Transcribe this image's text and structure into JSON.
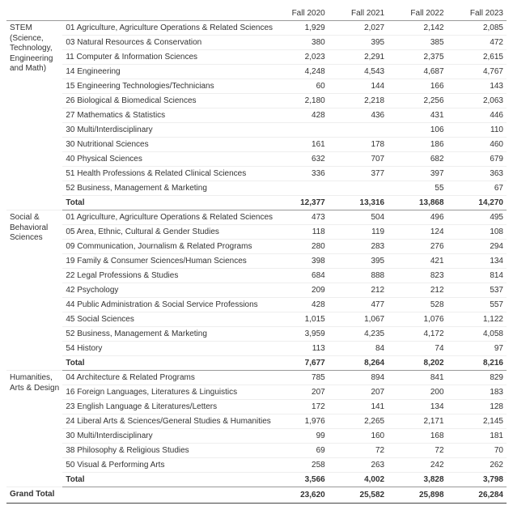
{
  "columns": [
    "Fall 2020",
    "Fall 2021",
    "Fall 2022",
    "Fall 2023"
  ],
  "groups": [
    {
      "label": "STEM (Science, Technology, Engineering and Math)",
      "rows": [
        {
          "label": "01 Agriculture, Agriculture Operations & Related Sciences",
          "v": [
            "1,929",
            "2,027",
            "2,142",
            "2,085"
          ]
        },
        {
          "label": "03 Natural Resources & Conservation",
          "v": [
            "380",
            "395",
            "385",
            "472"
          ]
        },
        {
          "label": "11 Computer & Information Sciences",
          "v": [
            "2,023",
            "2,291",
            "2,375",
            "2,615"
          ]
        },
        {
          "label": "14 Engineering",
          "v": [
            "4,248",
            "4,543",
            "4,687",
            "4,767"
          ]
        },
        {
          "label": "15 Engineering Technologies/Technicians",
          "v": [
            "60",
            "144",
            "166",
            "143"
          ]
        },
        {
          "label": "26 Biological & Biomedical Sciences",
          "v": [
            "2,180",
            "2,218",
            "2,256",
            "2,063"
          ]
        },
        {
          "label": "27 Mathematics & Statistics",
          "v": [
            "428",
            "436",
            "431",
            "446"
          ]
        },
        {
          "label": "30 Multi/Interdisciplinary",
          "v": [
            "",
            "",
            "106",
            "110"
          ]
        },
        {
          "label": "30 Nutritional Sciences",
          "v": [
            "161",
            "178",
            "186",
            "460"
          ]
        },
        {
          "label": "40 Physical Sciences",
          "v": [
            "632",
            "707",
            "682",
            "679"
          ]
        },
        {
          "label": "51 Health Professions & Related Clinical Sciences",
          "v": [
            "336",
            "377",
            "397",
            "363"
          ]
        },
        {
          "label": "52 Business, Management & Marketing",
          "v": [
            "",
            "",
            "55",
            "67"
          ]
        }
      ],
      "total": [
        "12,377",
        "13,316",
        "13,868",
        "14,270"
      ]
    },
    {
      "label": "Social & Behavioral Sciences",
      "rows": [
        {
          "label": "01 Agriculture, Agriculture Operations & Related Sciences",
          "v": [
            "473",
            "504",
            "496",
            "495"
          ]
        },
        {
          "label": "05 Area, Ethnic, Cultural & Gender Studies",
          "v": [
            "118",
            "119",
            "124",
            "108"
          ]
        },
        {
          "label": "09 Communication, Journalism & Related Programs",
          "v": [
            "280",
            "283",
            "276",
            "294"
          ]
        },
        {
          "label": "19 Family & Consumer Sciences/Human Sciences",
          "v": [
            "398",
            "395",
            "421",
            "134"
          ]
        },
        {
          "label": "22 Legal Professions & Studies",
          "v": [
            "684",
            "888",
            "823",
            "814"
          ]
        },
        {
          "label": "42 Psychology",
          "v": [
            "209",
            "212",
            "212",
            "537"
          ]
        },
        {
          "label": "44 Public Administration & Social Service Professions",
          "v": [
            "428",
            "477",
            "528",
            "557"
          ]
        },
        {
          "label": "45 Social Sciences",
          "v": [
            "1,015",
            "1,067",
            "1,076",
            "1,122"
          ]
        },
        {
          "label": "52 Business, Management & Marketing",
          "v": [
            "3,959",
            "4,235",
            "4,172",
            "4,058"
          ]
        },
        {
          "label": "54 History",
          "v": [
            "113",
            "84",
            "74",
            "97"
          ]
        }
      ],
      "total": [
        "7,677",
        "8,264",
        "8,202",
        "8,216"
      ]
    },
    {
      "label": "Humanities, Arts & Design",
      "rows": [
        {
          "label": "04 Architecture & Related Programs",
          "v": [
            "785",
            "894",
            "841",
            "829"
          ]
        },
        {
          "label": "16 Foreign Languages, Literatures & Linguistics",
          "v": [
            "207",
            "207",
            "200",
            "183"
          ]
        },
        {
          "label": "23 English Language & Literatures/Letters",
          "v": [
            "172",
            "141",
            "134",
            "128"
          ]
        },
        {
          "label": "24 Liberal Arts & Sciences/General Studies & Humanities",
          "v": [
            "1,976",
            "2,265",
            "2,171",
            "2,145"
          ]
        },
        {
          "label": "30 Multi/Interdisciplinary",
          "v": [
            "99",
            "160",
            "168",
            "181"
          ]
        },
        {
          "label": "38 Philosophy & Religious Studies",
          "v": [
            "69",
            "72",
            "72",
            "70"
          ]
        },
        {
          "label": "50 Visual & Performing Arts",
          "v": [
            "258",
            "263",
            "242",
            "262"
          ]
        }
      ],
      "total": [
        "3,566",
        "4,002",
        "3,828",
        "3,798"
      ]
    }
  ],
  "grand_label": "Grand Total",
  "grand": [
    "23,620",
    "25,582",
    "25,898",
    "26,284"
  ],
  "total_label": "Total"
}
